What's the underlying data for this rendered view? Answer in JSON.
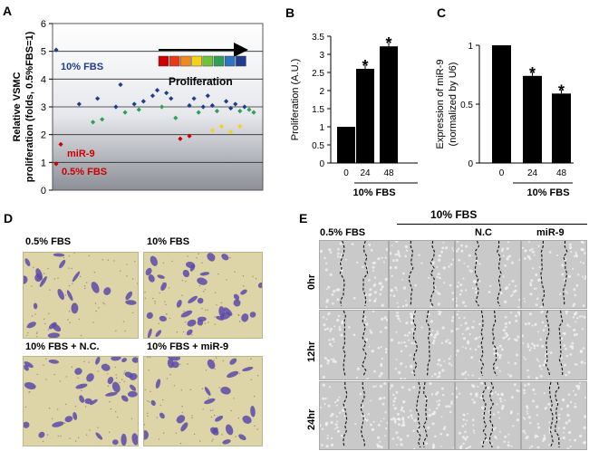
{
  "panels": {
    "a": "A",
    "b": "B",
    "c": "C",
    "d": "D",
    "e": "E"
  },
  "chart_data": [
    {
      "type": "scatter",
      "panel": "A",
      "ylabel_line1": "Relative VSMC",
      "ylabel_line2": "proliferation (folds, 0.5%FBS=1)",
      "ylim": [
        0,
        6
      ],
      "yticks": [
        "0",
        "1",
        "2",
        "3",
        "4",
        "5",
        "6"
      ],
      "grid": true,
      "legend_title": "Proliferation",
      "scale_colors": [
        "#cc0000",
        "#e83a1a",
        "#f08a1e",
        "#f4d21a",
        "#6fc23a",
        "#2ea05a",
        "#2f74c0",
        "#1f3d8c"
      ],
      "annotations": [
        {
          "text": "10% FBS",
          "color": "#1f3d8c",
          "x": 1,
          "y": 5.05
        },
        {
          "text": "miR-9",
          "color": "#cc0000",
          "x": 1,
          "y": 1.65
        },
        {
          "text": "0.5% FBS",
          "color": "#cc0000",
          "x": 1,
          "y": 0.95
        }
      ],
      "series": [
        {
          "color": "#1f3d8c",
          "x": [
            1,
            6,
            10,
            14,
            15,
            18,
            20,
            22,
            23,
            25,
            26,
            30,
            31,
            33,
            34,
            35,
            38,
            39,
            40,
            42
          ],
          "y": [
            5.05,
            3.1,
            3.3,
            3.0,
            3.8,
            3.1,
            3.2,
            3.4,
            3.6,
            3.5,
            3.3,
            3.05,
            3.3,
            3.0,
            3.4,
            3.05,
            3.2,
            2.95,
            3.1,
            3.0
          ]
        },
        {
          "color": "#2ea05a",
          "x": [
            9,
            11,
            16,
            19,
            24,
            27,
            32,
            36,
            41,
            43,
            44
          ],
          "y": [
            2.45,
            2.55,
            2.8,
            2.9,
            3.0,
            2.6,
            2.8,
            2.85,
            2.85,
            2.9,
            2.8
          ]
        },
        {
          "color": "#f4d21a",
          "x": [
            35,
            37,
            39,
            41
          ],
          "y": [
            2.15,
            2.3,
            2.1,
            2.3
          ]
        },
        {
          "color": "#cc0000",
          "x": [
            1,
            2,
            28,
            30
          ],
          "y": [
            0.95,
            1.65,
            1.85,
            1.95
          ]
        }
      ]
    },
    {
      "type": "bar",
      "panel": "B",
      "ylabel": "Proliferation (A.U.)",
      "categories": [
        "0",
        "24",
        "48"
      ],
      "values": [
        1.0,
        2.6,
        3.22
      ],
      "significant": [
        false,
        true,
        true
      ],
      "star": "*",
      "ylim": [
        0,
        3.5
      ],
      "yticks": [
        "0",
        "0.5",
        "1",
        "1.5",
        "2",
        "2.5",
        "3",
        "3.5"
      ],
      "group_label": "10% FBS"
    },
    {
      "type": "bar",
      "panel": "C",
      "ylabel_line1": "Expression of miR-9",
      "ylabel_line2": "(normalized by U6)",
      "categories": [
        "0",
        "24",
        "48"
      ],
      "values": [
        1.0,
        0.74,
        0.59
      ],
      "significant": [
        false,
        true,
        true
      ],
      "star": "*",
      "ylim": [
        0,
        1.0
      ],
      "yticks": [
        "0",
        "0.5",
        "1"
      ],
      "group_label": "10% FBS"
    }
  ],
  "panel_d": {
    "labels": [
      "0.5% FBS",
      "10% FBS",
      "10% FBS + N.C.",
      "10% FBS + miR-9"
    ]
  },
  "panel_e": {
    "group_label": "10% FBS",
    "columns": [
      "0.5% FBS",
      "N.C",
      "miR-9"
    ],
    "rows": [
      "0hr",
      "12hr",
      "24hr"
    ]
  }
}
